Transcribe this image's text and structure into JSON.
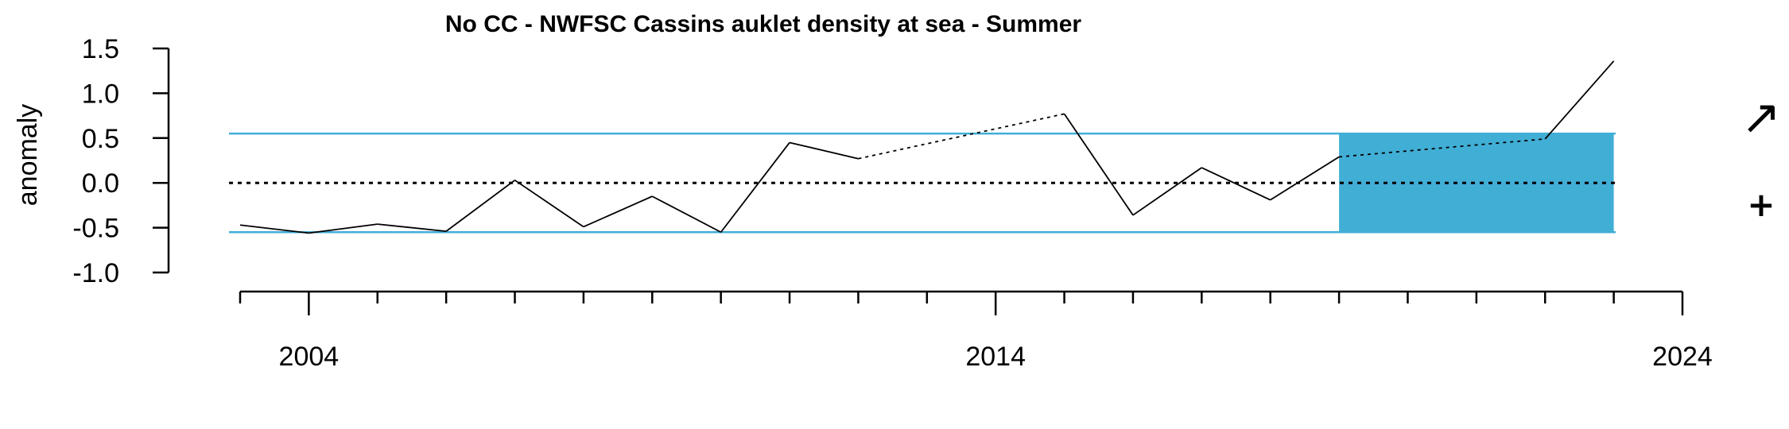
{
  "chart_data": {
    "type": "line",
    "title": "No CC - NWFSC Cassins auklet density at sea - Summer",
    "xlabel": "",
    "ylabel": "anomaly",
    "xlim": [
      2003,
      2024
    ],
    "ylim": [
      -1.0,
      1.5
    ],
    "yticks": [
      1.5,
      1.0,
      0.5,
      0.0,
      -0.5,
      -1.0
    ],
    "ytick_labels": [
      "1.5",
      "1.0",
      "0.5",
      "0.0",
      "-0.5",
      "-1.0"
    ],
    "xtick_labels": [
      {
        "year": 2004,
        "label": "2004"
      },
      {
        "year": 2014,
        "label": "2014"
      },
      {
        "year": 2024,
        "label": "2024"
      }
    ],
    "minor_tick_years": [
      2003,
      2004,
      2005,
      2006,
      2007,
      2008,
      2009,
      2010,
      2011,
      2012,
      2013,
      2014,
      2015,
      2016,
      2017,
      2018,
      2019,
      2020,
      2021,
      2022,
      2023,
      2024
    ],
    "series": [
      {
        "points": [
          {
            "x": 2003,
            "y": -0.47
          },
          {
            "x": 2004,
            "y": -0.56
          },
          {
            "x": 2005,
            "y": -0.46
          },
          {
            "x": 2006,
            "y": -0.54
          },
          {
            "x": 2007,
            "y": 0.03
          },
          {
            "x": 2008,
            "y": -0.49
          },
          {
            "x": 2009,
            "y": -0.15
          },
          {
            "x": 2010,
            "y": -0.55
          },
          {
            "x": 2011,
            "y": 0.45
          },
          {
            "x": 2012,
            "y": 0.27
          },
          {
            "x": 2015,
            "y": 0.77
          },
          {
            "x": 2016,
            "y": -0.36
          },
          {
            "x": 2017,
            "y": 0.17
          },
          {
            "x": 2018,
            "y": -0.19
          },
          {
            "x": 2019,
            "y": 0.29
          },
          {
            "x": 2022,
            "y": 0.49
          },
          {
            "x": 2023,
            "y": 1.36
          }
        ]
      }
    ],
    "mean": 0.0,
    "sd_upper": 0.55,
    "sd_lower": -0.55,
    "highlight_period": [
      2019,
      2023
    ],
    "colors": {
      "band": "#41aed6",
      "sd_line": "#41aed6",
      "series": "#000000",
      "mean_line": "#000000"
    },
    "trend_symbol": "↗",
    "mean_symbol": "+"
  }
}
